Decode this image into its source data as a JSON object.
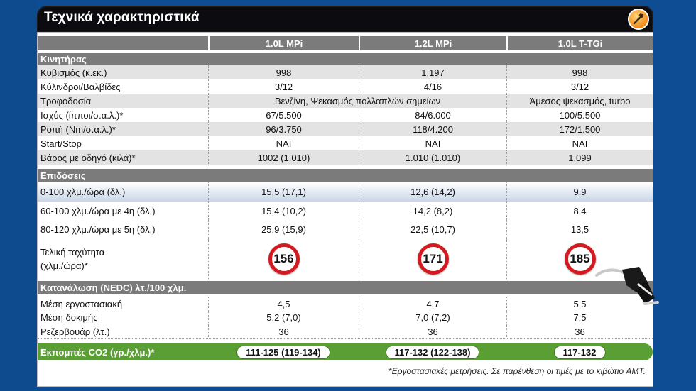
{
  "title": "Τεχνικά χαρακτηριστικά",
  "icons": {
    "badge": "tools-icon",
    "nozzle": "fuel-nozzle-icon"
  },
  "colors": {
    "header_grey": "#7b7b7b",
    "speed_ring": "#d51920",
    "co2_green": "#5a9f33"
  },
  "columns": [
    "1.0L MPi",
    "1.2L MPi",
    "1.0L T-TGi"
  ],
  "sections": {
    "engine": "Κινητήρας",
    "performance": "Επιδόσεις",
    "consumption": "Κατανάλωση (NEDC) λτ./100 χλμ."
  },
  "engine_rows": [
    {
      "label": "Κυβισμός (κ.εκ.)",
      "v1": "998",
      "v2": "1.197",
      "v3": "998"
    },
    {
      "label": "Κύλινδροι/Βαλβίδες",
      "v1": "3/12",
      "v2": "4/16",
      "v3": "3/12"
    },
    {
      "label": "Τροφοδοσία",
      "v12": "Βενζίνη, Ψεκασμός πολλαπλών σημείων",
      "v3": "Άμεσος ψεκασμός, turbo"
    },
    {
      "label": "Ισχύς (ίπποι/σ.α.λ.)*",
      "v1": "67/5.500",
      "v2": "84/6.000",
      "v3": "100/5.500"
    },
    {
      "label": "Ροπή (Nm/σ.α.λ.)*",
      "v1": "96/3.750",
      "v2": "118/4.200",
      "v3": "172/1.500"
    },
    {
      "label": "Start/Stop",
      "v1": "ΝΑΙ",
      "v2": "ΝΑΙ",
      "v3": "ΝΑΙ"
    },
    {
      "label": "Βάρος με οδηγό (κιλά)*",
      "v1": "1002 (1.010)",
      "v2": "1.010 (1.010)",
      "v3": "1.099"
    }
  ],
  "perf_rows": [
    {
      "label": "0-100 χλμ./ώρα (δλ.)",
      "v1": "15,5 (17,1)",
      "v2": "12,6 (14,2)",
      "v3": "9,9"
    },
    {
      "label": "60-100 χλμ./ώρα με 4η (δλ.)",
      "v1": "15,4 (10,2)",
      "v2": "14,2 (8,2)",
      "v3": "8,4"
    },
    {
      "label": "80-120 χλμ./ώρα με 5η (δλ.)",
      "v1": "25,9 (15,9)",
      "v2": "22,5 (10,7)",
      "v3": "13,5"
    }
  ],
  "top_speed": {
    "label1": "Τελική ταχύτητα",
    "label2": "(χλμ./ώρα)*",
    "v1": "156",
    "v2": "171",
    "v3": "185"
  },
  "cons_rows": [
    {
      "label": "Μέση εργοστασιακή",
      "v1": "4,5",
      "v2": "4,7",
      "v3": "5,5"
    },
    {
      "label": "Μέση δοκιμής",
      "v1": "5,2 (7,0)",
      "v2": "7,0 (7,2)",
      "v3": "7,5"
    },
    {
      "label": "Ρεζερβουάρ (λτ.)",
      "v1": "36",
      "v2": "36",
      "v3": "36"
    }
  ],
  "co2": {
    "label": "Εκπομπές CO2 (γρ./χλμ.)*",
    "v1": "111-125 (119-134)",
    "v2": "117-132 (122-138)",
    "v3": "117-132"
  },
  "footnote": "*Εργοστασιακές μετρήσεις. Σε παρένθεση οι τιμές με το κιβώτιο AMT."
}
